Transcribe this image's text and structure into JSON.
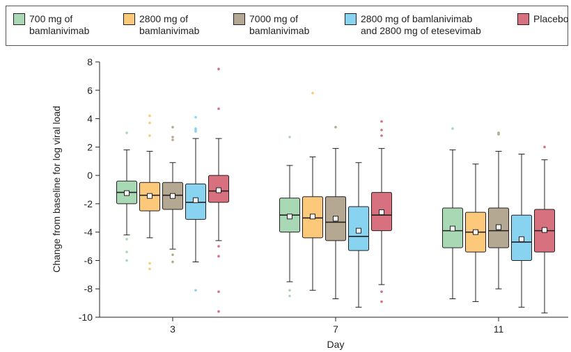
{
  "chart_data": {
    "type": "box",
    "xlabel": "Day",
    "ylabel": "Change from baseline for log viral load",
    "categories": [
      "3",
      "7",
      "11"
    ],
    "ylim": [
      -10,
      8
    ],
    "yticks": [
      -10,
      -8,
      -6,
      -4,
      -2,
      0,
      2,
      4,
      6,
      8
    ],
    "legend_position": "top",
    "series": [
      {
        "name": "700 mg of\nbamlanivimab",
        "color": "#a8d8b4",
        "boxes": [
          {
            "whisker_low": -4.2,
            "q1": -2.0,
            "median": -1.2,
            "q3": -0.4,
            "whisker_high": 1.8,
            "mean": -1.25,
            "outliers": [
              3.0,
              -4.5,
              -5.4,
              -6.0
            ]
          },
          {
            "whisker_low": -7.5,
            "q1": -4.0,
            "median": -2.8,
            "q3": -1.6,
            "whisker_high": 0.7,
            "mean": -2.9,
            "outliers": [
              2.7,
              -8.1,
              -8.5
            ]
          },
          {
            "whisker_low": -8.7,
            "q1": -5.1,
            "median": -3.9,
            "q3": -2.3,
            "whisker_high": 1.8,
            "mean": -3.75,
            "outliers": [
              3.3
            ]
          }
        ]
      },
      {
        "name": "2800 mg of\nbamlanivimab",
        "color": "#fcc97a",
        "boxes": [
          {
            "whisker_low": -4.4,
            "q1": -2.5,
            "median": -1.4,
            "q3": -0.5,
            "whisker_high": 1.7,
            "mean": -1.45,
            "outliers": [
              4.2,
              3.7,
              2.8,
              -6.2,
              -6.6
            ]
          },
          {
            "whisker_low": -8.1,
            "q1": -4.4,
            "median": -3.0,
            "q3": -1.5,
            "whisker_high": 1.3,
            "mean": -2.9,
            "outliers": [
              5.8
            ]
          },
          {
            "whisker_low": -8.9,
            "q1": -5.4,
            "median": -4.0,
            "q3": -2.6,
            "whisker_high": 0.8,
            "mean": -4.0,
            "outliers": []
          }
        ]
      },
      {
        "name": "7000 mg of\nbamlanivimab",
        "color": "#b5a892",
        "boxes": [
          {
            "whisker_low": -5.2,
            "q1": -2.4,
            "median": -1.4,
            "q3": -0.5,
            "whisker_high": 0.9,
            "mean": -1.45,
            "outliers": [
              3.4,
              2.7,
              2.5,
              -5.6,
              -6.1
            ]
          },
          {
            "whisker_low": -8.7,
            "q1": -4.6,
            "median": -3.3,
            "q3": -1.5,
            "whisker_high": 1.9,
            "mean": -3.05,
            "outliers": [
              3.4
            ]
          },
          {
            "whisker_low": -8.0,
            "q1": -5.1,
            "median": -3.9,
            "q3": -2.3,
            "whisker_high": 1.7,
            "mean": -3.65,
            "outliers": [
              3.0,
              2.9
            ]
          }
        ]
      },
      {
        "name": "2800 mg of bamlanivimab\nand 2800 mg of etesevimab",
        "color": "#87d3f0",
        "boxes": [
          {
            "whisker_low": -6.1,
            "q1": -3.1,
            "median": -1.9,
            "q3": -0.6,
            "whisker_high": 2.6,
            "mean": -1.75,
            "outliers": [
              4.1,
              3.3,
              3.2,
              3.1,
              -8.1
            ]
          },
          {
            "whisker_low": -9.3,
            "q1": -5.3,
            "median": -4.3,
            "q3": -2.2,
            "whisker_high": 0.9,
            "mean": -3.9,
            "outliers": []
          },
          {
            "whisker_low": -9.3,
            "q1": -6.0,
            "median": -4.7,
            "q3": -2.8,
            "whisker_high": 1.5,
            "mean": -4.5,
            "outliers": []
          }
        ]
      },
      {
        "name": "Placebo",
        "color": "#d7717f",
        "boxes": [
          {
            "whisker_low": -4.6,
            "q1": -1.9,
            "median": -1.1,
            "q3": 0.0,
            "whisker_high": 2.6,
            "mean": -1.05,
            "outliers": [
              7.5,
              4.7,
              -5.0,
              -5.7,
              -8.2,
              -9.6
            ]
          },
          {
            "whisker_low": -7.7,
            "q1": -3.9,
            "median": -2.8,
            "q3": -1.2,
            "whisker_high": 1.9,
            "mean": -2.6,
            "outliers": [
              3.8,
              3.2,
              2.8,
              -8.2,
              -8.9
            ]
          },
          {
            "whisker_low": -9.7,
            "q1": -5.4,
            "median": -3.9,
            "q3": -2.4,
            "whisker_high": 1.1,
            "mean": -3.85,
            "outliers": [
              2.0
            ]
          }
        ]
      }
    ]
  }
}
